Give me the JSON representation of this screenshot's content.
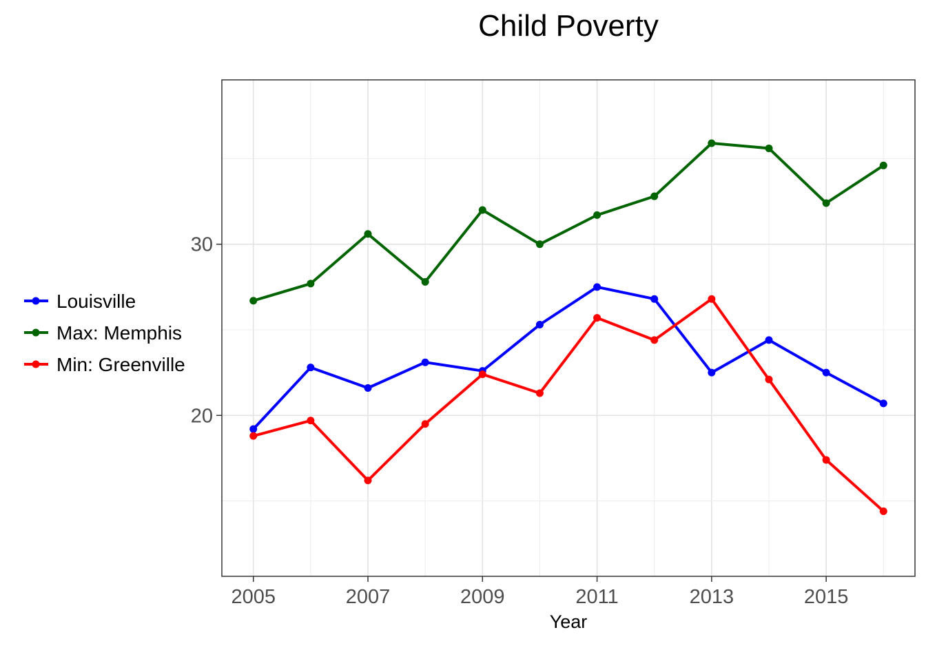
{
  "chart_data": {
    "type": "line",
    "title": "Child Poverty",
    "xlabel": "Year",
    "ylabel": "",
    "x": [
      2005,
      2006,
      2007,
      2008,
      2009,
      2010,
      2011,
      2012,
      2013,
      2014,
      2015,
      2016
    ],
    "x_ticks": [
      2005,
      2007,
      2009,
      2011,
      2013,
      2015
    ],
    "x_tick_labels": [
      "2005",
      "2007",
      "2009",
      "2011",
      "2013",
      "2015"
    ],
    "y_ticks": [
      20,
      30
    ],
    "y_tick_labels": [
      "20",
      "30"
    ],
    "xlim": [
      2004.45,
      2016.55
    ],
    "ylim": [
      10.6,
      39.6
    ],
    "grid": true,
    "legend_position": "left",
    "series": [
      {
        "name": "Louisville",
        "color": "#0000ff",
        "values": [
          19.2,
          22.8,
          21.6,
          23.1,
          22.6,
          25.3,
          27.5,
          26.8,
          22.5,
          24.4,
          22.5,
          20.7
        ]
      },
      {
        "name": "Max: Memphis",
        "color": "#006400",
        "values": [
          26.7,
          27.7,
          30.6,
          27.8,
          32.0,
          30.0,
          31.7,
          32.8,
          35.9,
          35.6,
          32.4,
          34.6
        ]
      },
      {
        "name": "Min: Greenville",
        "color": "#ff0000",
        "values": [
          18.8,
          19.7,
          16.2,
          19.5,
          22.4,
          21.3,
          25.7,
          24.4,
          26.8,
          22.1,
          17.4,
          14.4
        ]
      }
    ]
  }
}
